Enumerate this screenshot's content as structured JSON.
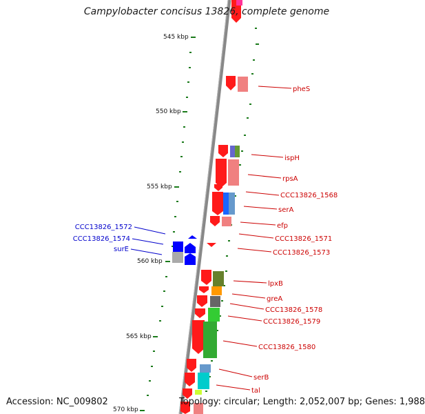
{
  "title": "Campylobacter concisus 13826, complete genome",
  "accession": "Accession: NC_009802",
  "topology": "Topology: circular; Length: 2,052,007 bp; Genes: 1,988",
  "colors": {
    "forward_label": "#cc0000",
    "reverse_label": "#0000cc",
    "forward_gene": "#ff0000",
    "reverse_gene": "#0000ff",
    "backbone": "#888888",
    "tick": "#1a7a1a"
  },
  "ticks": [
    {
      "label": "545 kbp"
    },
    {
      "label": "550 kbp"
    },
    {
      "label": "555 kbp"
    },
    {
      "label": "560 kbp"
    },
    {
      "label": "565 kbp"
    },
    {
      "label": "570 kbp"
    }
  ],
  "genes_forward": [
    {
      "label": "pheS"
    },
    {
      "label": "ispH"
    },
    {
      "label": "rpsA"
    },
    {
      "label": "CCC13826_1568"
    },
    {
      "label": "serA"
    },
    {
      "label": "efp"
    },
    {
      "label": "CCC13826_1571"
    },
    {
      "label": "CCC13826_1573"
    },
    {
      "label": "lpxB"
    },
    {
      "label": "greA"
    },
    {
      "label": "CCC13826_1578"
    },
    {
      "label": "CCC13826_1579"
    },
    {
      "label": "CCC13826_1580"
    },
    {
      "label": "serB"
    },
    {
      "label": "tal"
    }
  ],
  "genes_reverse": [
    {
      "label": "CCC13826_1572"
    },
    {
      "label": "CCC13826_1574"
    },
    {
      "label": "surE"
    }
  ]
}
